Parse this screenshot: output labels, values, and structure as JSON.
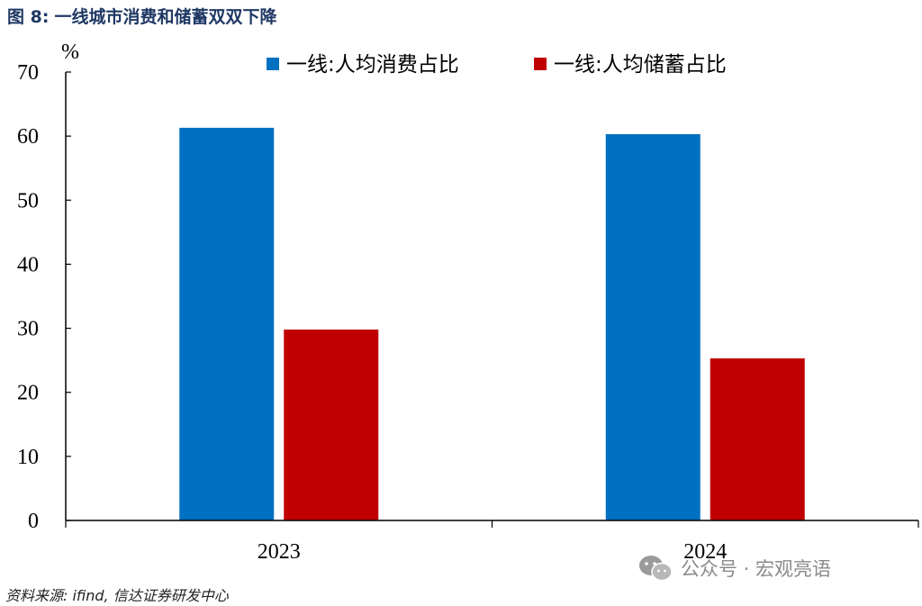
{
  "figure": {
    "label": "图 8:",
    "title": "一线城市消费和储蓄双双下降"
  },
  "source": "资料来源: ifind, 信达证券研发中心",
  "watermark": {
    "text": "公众号 · 宏观亮语",
    "icon": "wechat-icon"
  },
  "chart_data": {
    "type": "bar",
    "ylabel": "%",
    "ylim": [
      0,
      70
    ],
    "yticks": [
      0,
      10,
      20,
      30,
      40,
      50,
      60,
      70
    ],
    "categories": [
      "2023",
      "2024"
    ],
    "legend_position": "top",
    "grid": false,
    "series": [
      {
        "name": "一线:人均消费占比",
        "color": "#0070c0",
        "values": [
          61.3,
          60.3
        ]
      },
      {
        "name": "一线:人均储蓄占比",
        "color": "#c00000",
        "values": [
          29.8,
          25.3
        ]
      }
    ]
  }
}
